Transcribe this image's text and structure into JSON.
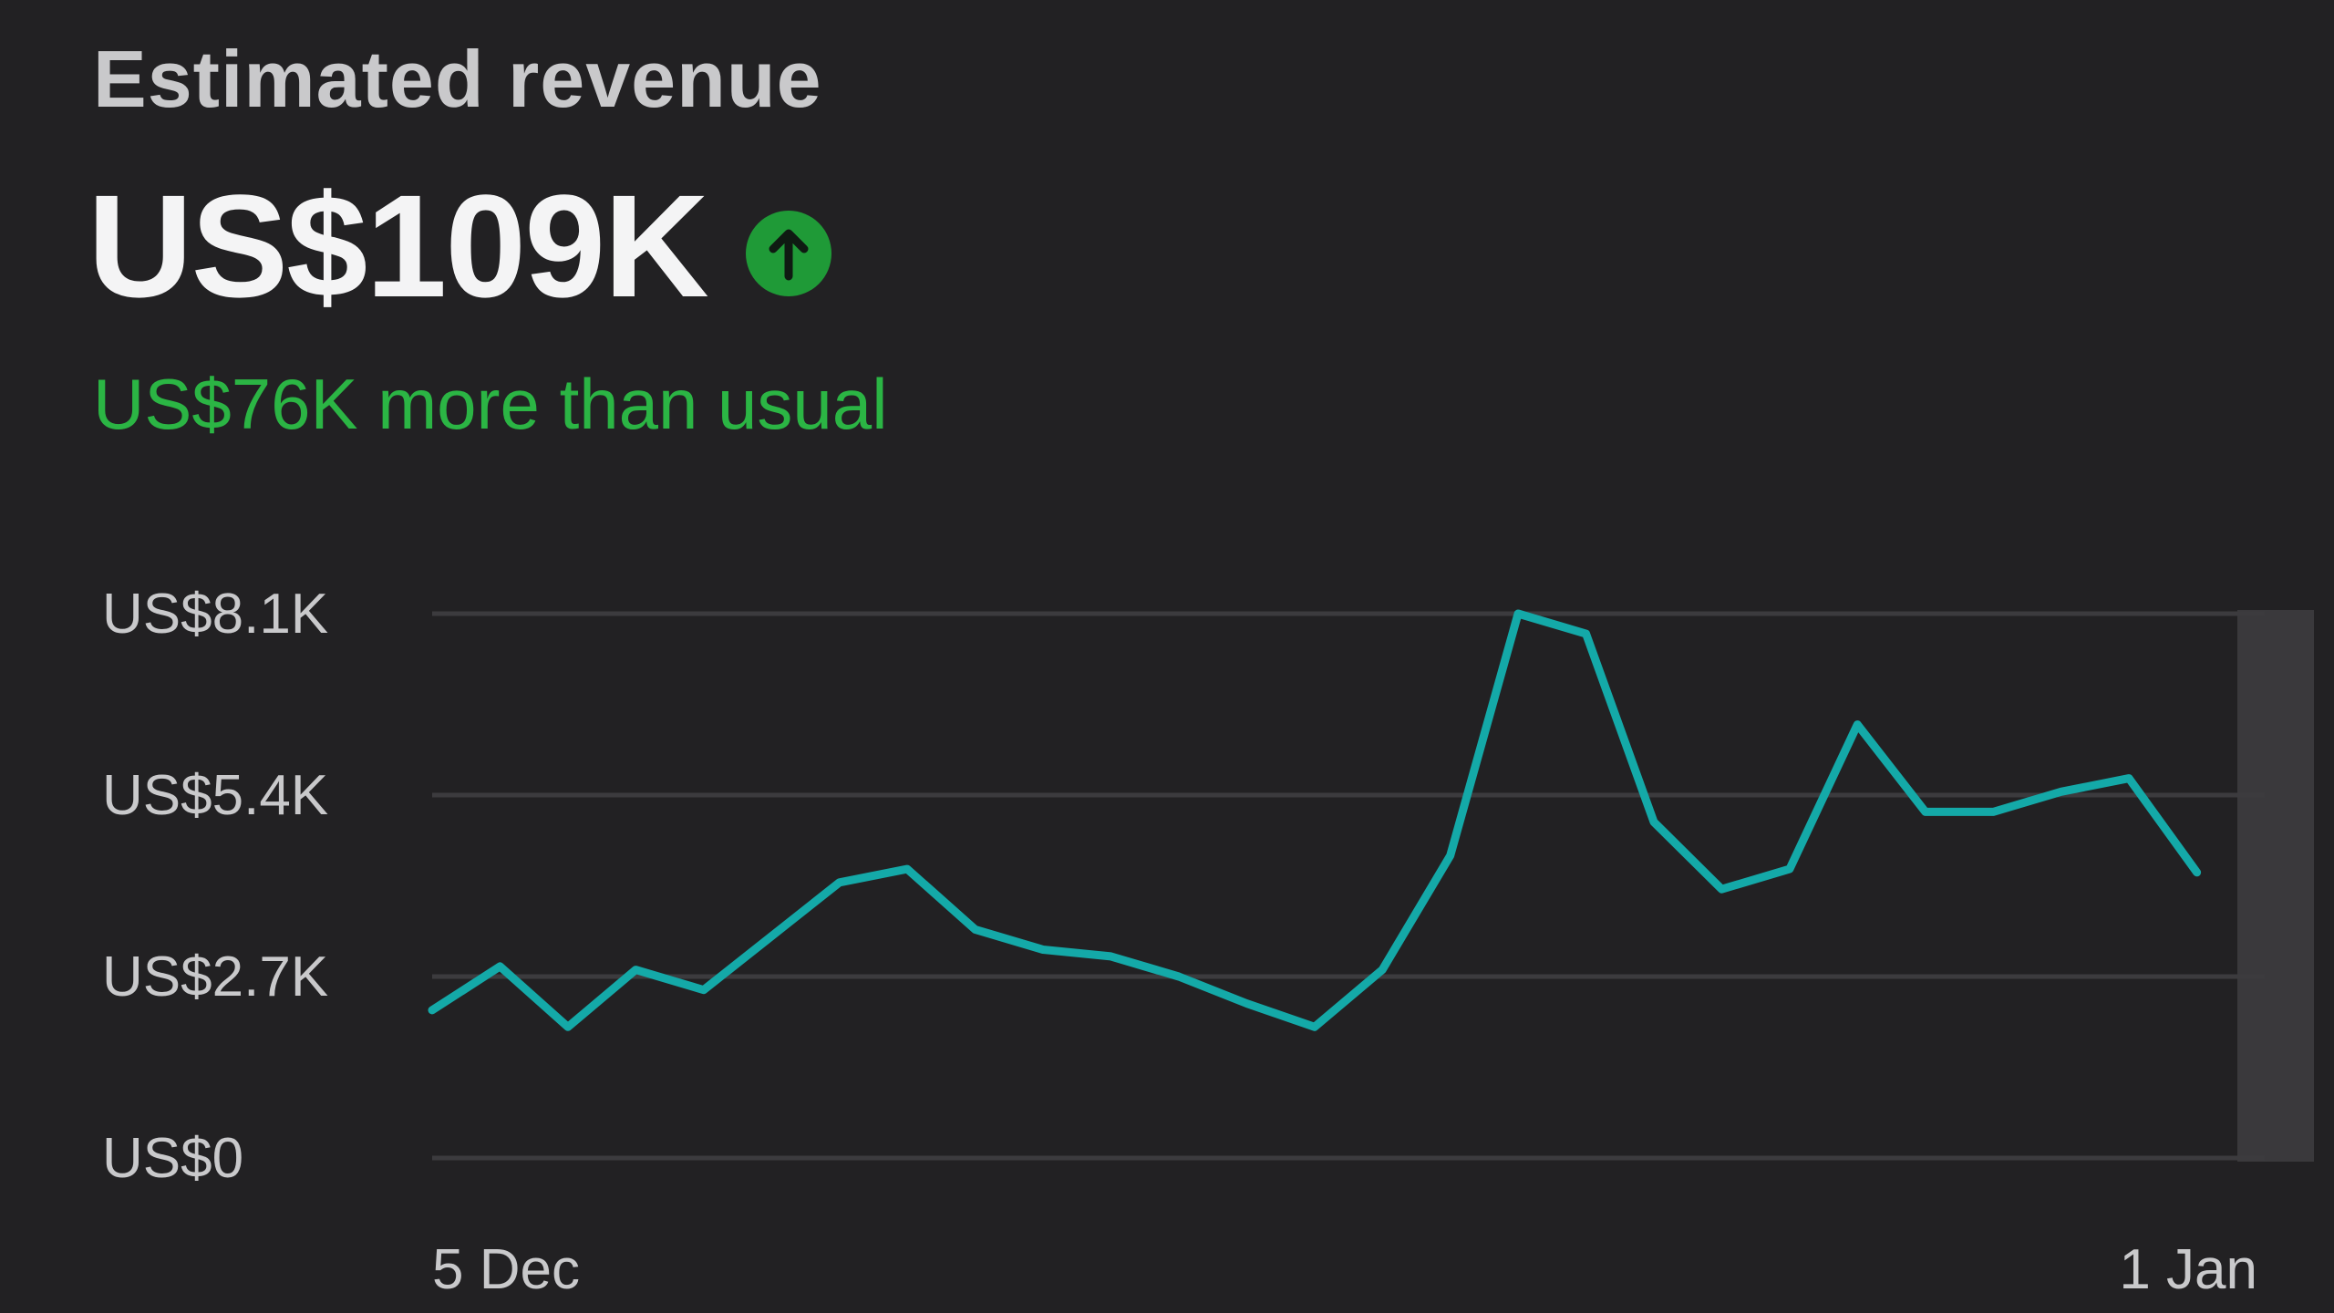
{
  "header": {
    "title": "Estimated revenue"
  },
  "metric": {
    "value": "US$109K",
    "comparison": "US$76K more than usual",
    "trend_icon": "arrow-up-icon"
  },
  "colors": {
    "background": "#222123",
    "line": "#14a9a8",
    "positive": "#2bb544",
    "badge": "#1f9a37",
    "grid": "#3c3b3e",
    "tick_text": "#c9c9cb",
    "highlight": "#3a393c"
  },
  "chart_data": {
    "type": "line",
    "title": "",
    "xlabel": "",
    "ylabel": "",
    "y_ticks": [
      {
        "value": 8100,
        "label": "US$8.1K"
      },
      {
        "value": 5400,
        "label": "US$5.4K"
      },
      {
        "value": 2700,
        "label": "US$2.7K"
      },
      {
        "value": 0,
        "label": "US$0"
      }
    ],
    "ylim": [
      0,
      8100
    ],
    "x_tick_labels": [
      "5 Dec",
      "1 Jan"
    ],
    "x": [
      "5 Dec",
      "6 Dec",
      "7 Dec",
      "8 Dec",
      "9 Dec",
      "10 Dec",
      "11 Dec",
      "12 Dec",
      "13 Dec",
      "14 Dec",
      "15 Dec",
      "16 Dec",
      "17 Dec",
      "18 Dec",
      "19 Dec",
      "20 Dec",
      "21 Dec",
      "22 Dec",
      "23 Dec",
      "24 Dec",
      "25 Dec",
      "26 Dec",
      "27 Dec",
      "28 Dec",
      "29 Dec",
      "30 Dec",
      "31 Dec",
      "1 Jan"
    ],
    "series": [
      {
        "name": "",
        "values": [
          2200,
          2850,
          1950,
          2800,
          2500,
          3300,
          4100,
          4300,
          3400,
          3100,
          3000,
          2700,
          2300,
          1950,
          2800,
          4500,
          8100,
          7800,
          5000,
          4000,
          4300,
          6450,
          5150,
          5150,
          5450,
          5650,
          4250,
          4250
        ]
      }
    ],
    "last_value_shown": false,
    "highlighted_period": "1 Jan",
    "grid": true,
    "legend": "none"
  }
}
